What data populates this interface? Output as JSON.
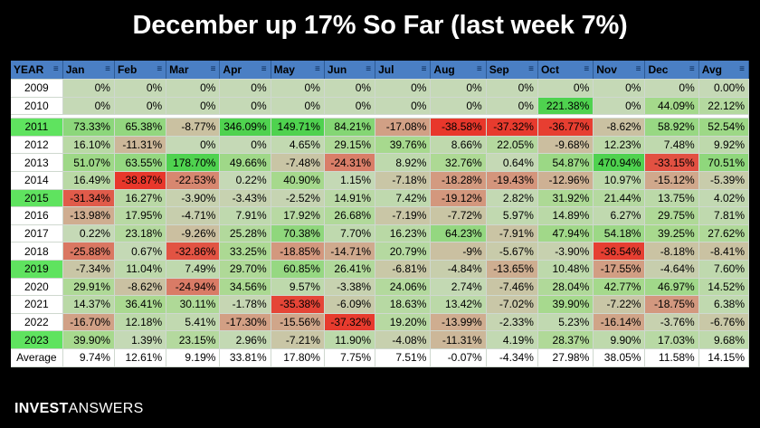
{
  "title": "December up 17% So Far (last week 7%)",
  "brand": {
    "bold": "INVEST",
    "light": "ANSWERS"
  },
  "chart_data": {
    "type": "table",
    "columns": [
      "YEAR",
      "Jan",
      "Feb",
      "Mar",
      "Apr",
      "May",
      "Jun",
      "Jul",
      "Aug",
      "Sep",
      "Oct",
      "Nov",
      "Dec",
      "Avg"
    ],
    "highlight_years": [
      "2011",
      "2015",
      "2019",
      "2023"
    ],
    "rows": [
      [
        "2009",
        "0%",
        "0%",
        "0%",
        "0%",
        "0%",
        "0%",
        "0%",
        "0%",
        "0%",
        "0%",
        "0%",
        "0%",
        "0.00%"
      ],
      [
        "2010",
        "0%",
        "0%",
        "0%",
        "0%",
        "0%",
        "0%",
        "0%",
        "0%",
        "0%",
        "221.38%",
        "0%",
        "44.09%",
        "22.12%"
      ],
      [
        "2011",
        "73.33%",
        "65.38%",
        "-8.77%",
        "346.09%",
        "149.71%",
        "84.21%",
        "-17.08%",
        "-38.58%",
        "-37.32%",
        "-36.77%",
        "-8.62%",
        "58.92%",
        "52.54%"
      ],
      [
        "2012",
        "16.10%",
        "-11.31%",
        "0%",
        "0%",
        "4.65%",
        "29.15%",
        "39.76%",
        "8.66%",
        "22.05%",
        "-9.68%",
        "12.23%",
        "7.48%",
        "9.92%"
      ],
      [
        "2013",
        "51.07%",
        "63.55%",
        "178.70%",
        "49.66%",
        "-7.48%",
        "-24.31%",
        "8.92%",
        "32.76%",
        "0.64%",
        "54.87%",
        "470.94%",
        "-33.15%",
        "70.51%"
      ],
      [
        "2014",
        "16.49%",
        "-38.87%",
        "-22.53%",
        "0.22%",
        "40.90%",
        "1.15%",
        "-7.18%",
        "-18.28%",
        "-19.43%",
        "-12.96%",
        "10.97%",
        "-15.12%",
        "-5.39%"
      ],
      [
        "2015",
        "-31.34%",
        "16.27%",
        "-3.90%",
        "-3.43%",
        "-2.52%",
        "14.91%",
        "7.42%",
        "-19.12%",
        "2.82%",
        "31.92%",
        "21.44%",
        "13.75%",
        "4.02%"
      ],
      [
        "2016",
        "-13.98%",
        "17.95%",
        "-4.71%",
        "7.91%",
        "17.92%",
        "26.68%",
        "-7.19%",
        "-7.72%",
        "5.97%",
        "14.89%",
        "6.27%",
        "29.75%",
        "7.81%"
      ],
      [
        "2017",
        "0.22%",
        "23.18%",
        "-9.26%",
        "25.28%",
        "70.38%",
        "7.70%",
        "16.23%",
        "64.23%",
        "-7.91%",
        "47.94%",
        "54.18%",
        "39.25%",
        "27.62%"
      ],
      [
        "2018",
        "-25.88%",
        "0.67%",
        "-32.86%",
        "33.25%",
        "-18.85%",
        "-14.71%",
        "20.79%",
        "-9%",
        "-5.67%",
        "-3.90%",
        "-36.54%",
        "-8.18%",
        "-8.41%"
      ],
      [
        "2019",
        "-7.34%",
        "11.04%",
        "7.49%",
        "29.70%",
        "60.85%",
        "26.41%",
        "-6.81%",
        "-4.84%",
        "-13.65%",
        "10.48%",
        "-17.55%",
        "-4.64%",
        "7.60%"
      ],
      [
        "2020",
        "29.91%",
        "-8.62%",
        "-24.94%",
        "34.56%",
        "9.57%",
        "-3.38%",
        "24.06%",
        "2.74%",
        "-7.46%",
        "28.04%",
        "42.77%",
        "46.97%",
        "14.52%"
      ],
      [
        "2021",
        "14.37%",
        "36.41%",
        "30.11%",
        "-1.78%",
        "-35.38%",
        "-6.09%",
        "18.63%",
        "13.42%",
        "-7.02%",
        "39.90%",
        "-7.22%",
        "-18.75%",
        "6.38%"
      ],
      [
        "2022",
        "-16.70%",
        "12.18%",
        "5.41%",
        "-17.30%",
        "-15.56%",
        "-37.32%",
        "19.20%",
        "-13.99%",
        "-2.33%",
        "5.23%",
        "-16.14%",
        "-3.76%",
        "-6.76%"
      ],
      [
        "2023",
        "39.90%",
        "1.39%",
        "23.15%",
        "2.96%",
        "-7.21%",
        "11.90%",
        "-4.08%",
        "-11.31%",
        "4.19%",
        "28.37%",
        "9.90%",
        "17.03%",
        "9.68%"
      ]
    ],
    "average_row": [
      "Average",
      "9.74%",
      "12.61%",
      "9.19%",
      "33.81%",
      "17.80%",
      "7.75%",
      "7.51%",
      "-0.07%",
      "-4.34%",
      "27.98%",
      "38.05%",
      "11.58%",
      "14.15%"
    ],
    "colors": {
      "strong_neg": "#e8372b",
      "neutral": "#c5d9b6",
      "pos": "#a9d98f",
      "strong_pos": "#4fd24f",
      "header": "#4a7fc4",
      "year_highlight": "#5fe35f"
    }
  }
}
